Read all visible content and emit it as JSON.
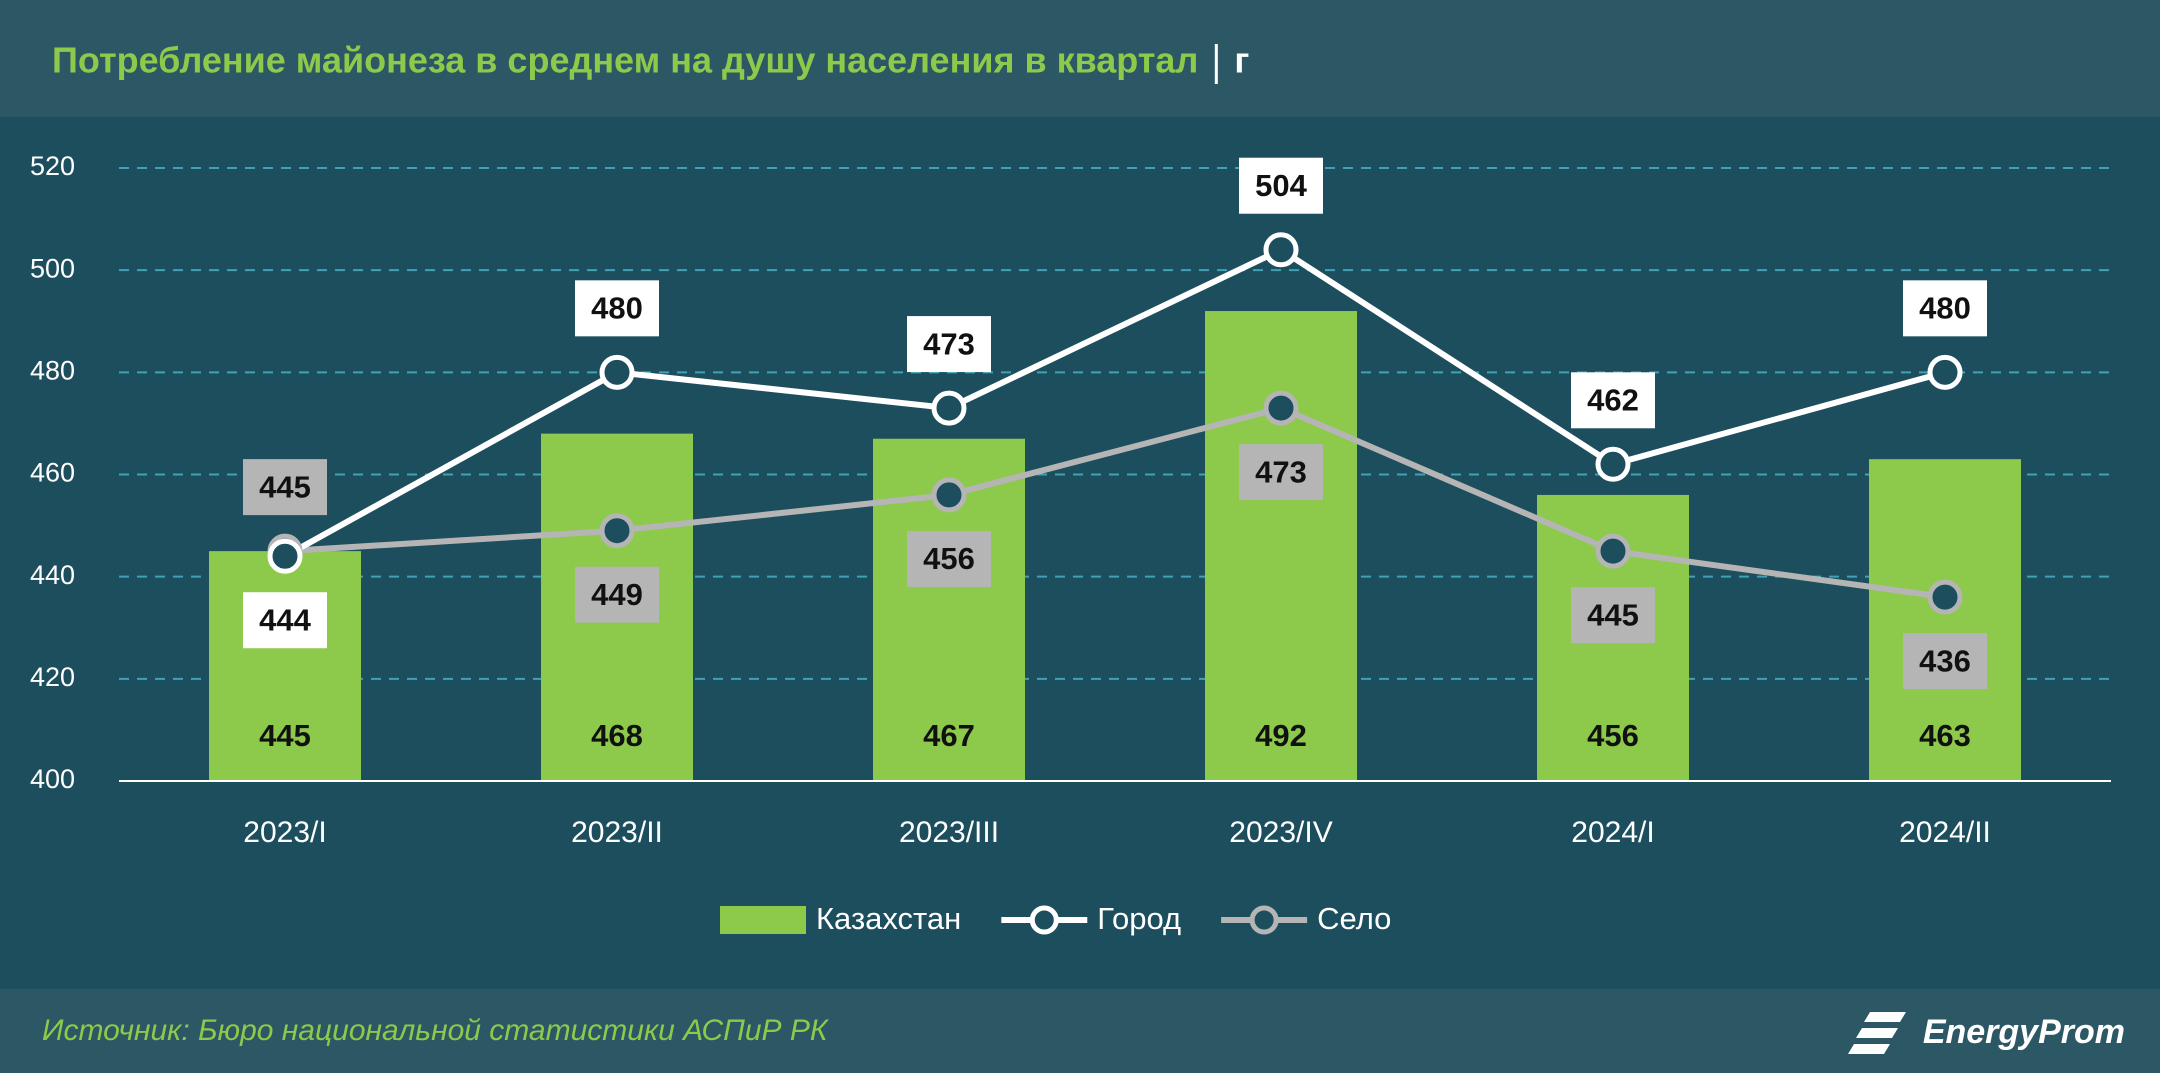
{
  "chart_data": {
    "type": "bar_line",
    "title": "Потребление майонеза в среднем на душу населения в квартал",
    "unit": "г",
    "source": "Источник: Бюро национальной статистики АСПиР РК",
    "logo": "EnergyProm",
    "categories": [
      "2023/I",
      "2023/II",
      "2023/III",
      "2023/IV",
      "2024/I",
      "2024/II"
    ],
    "series": [
      {
        "name": "Казахстан",
        "type": "bar",
        "color": "#8dc94b",
        "values": [
          445,
          468,
          467,
          492,
          456,
          463
        ]
      },
      {
        "name": "Город",
        "type": "line",
        "color": "#ffffff",
        "values": [
          444,
          480,
          473,
          504,
          462,
          480
        ]
      },
      {
        "name": "Село",
        "type": "line",
        "color": "#b5b5b5",
        "values": [
          445,
          449,
          456,
          473,
          445,
          436
        ]
      }
    ],
    "ylim": [
      400,
      520
    ],
    "yticks": [
      400,
      420,
      440,
      460,
      480,
      500,
      520
    ],
    "grid": true
  }
}
